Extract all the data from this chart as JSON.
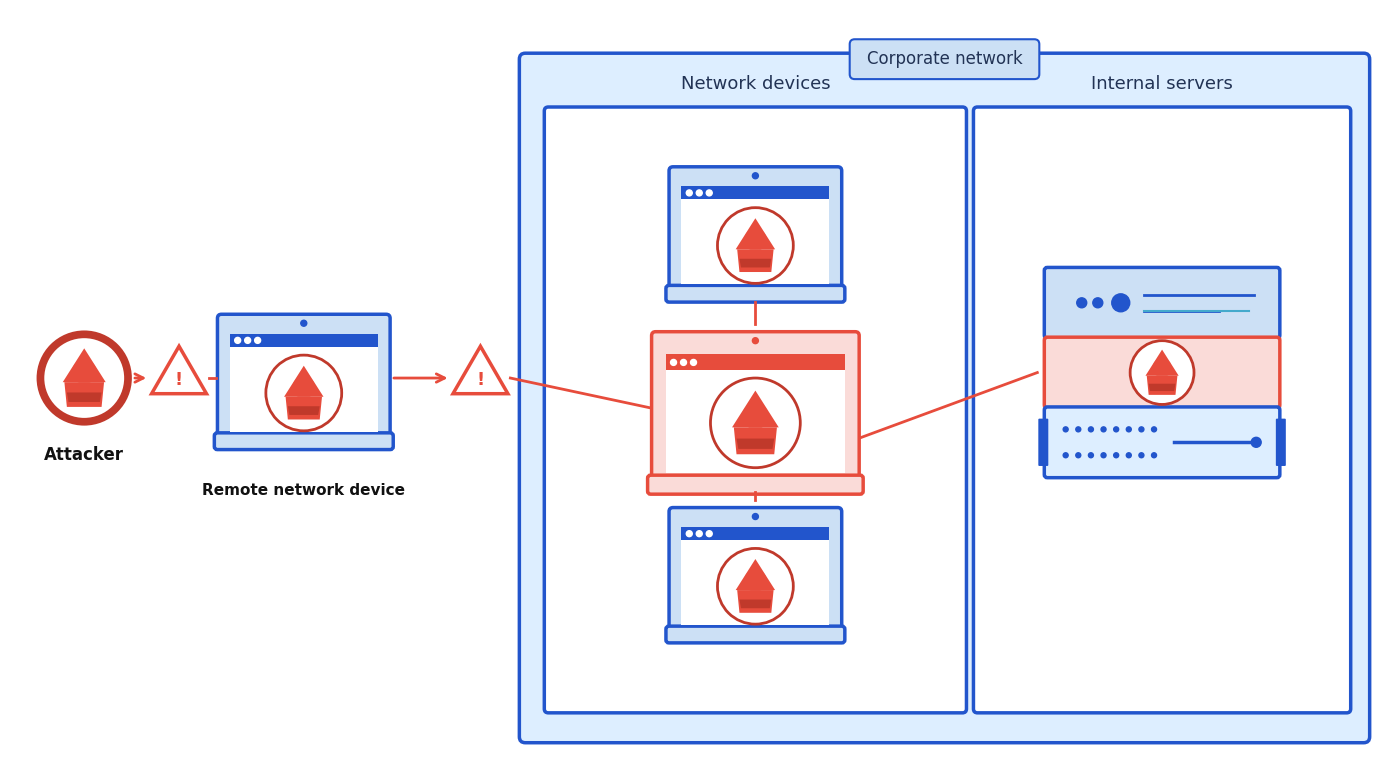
{
  "bg_color": "#ffffff",
  "red_dark": "#c0392b",
  "red_medium": "#e74c3c",
  "red_light": "#fadbd8",
  "red_border": "#e74c3c",
  "blue_dark": "#1a44a8",
  "blue_medium": "#2255cc",
  "blue_light": "#cce0f5",
  "blue_lighter": "#ddeeff",
  "blue_border": "#2255cc",
  "blue_screen": "#b8d8f0",
  "face_color": "#f1948a",
  "title_corp": "Corporate network",
  "label_attacker": "Attacker",
  "label_remote": "Remote network device",
  "label_net_devices": "Network devices",
  "label_int_servers": "Internal servers"
}
